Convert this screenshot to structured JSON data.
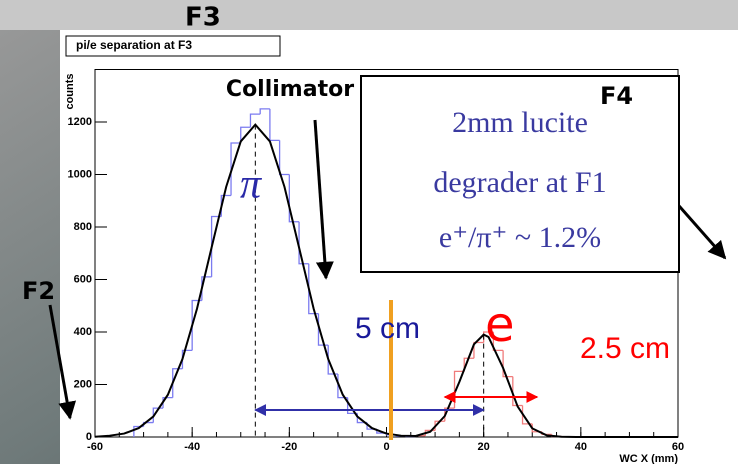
{
  "chart_data": {
    "type": "histogram",
    "title": "pi/e separation at F3",
    "xlabel": "WC X (mm)",
    "ylabel": "counts",
    "xlim": [
      -60,
      60
    ],
    "xticks": [
      -60,
      -40,
      -20,
      0,
      20,
      40,
      60
    ],
    "ylim": [
      0,
      1400
    ],
    "yticks": [
      0,
      200,
      400,
      600,
      800,
      1000,
      1200
    ],
    "series": [
      {
        "color": "#7b7bf0",
        "bins": [
          -52,
          -50,
          -48,
          -46,
          -44,
          -42,
          -40,
          -38,
          -36,
          -34,
          -32,
          -30,
          -28,
          -26,
          -24,
          -22,
          -20,
          -18,
          -16,
          -14,
          -12,
          -10,
          -8,
          -6,
          -4,
          -2,
          0,
          2,
          4,
          6
        ],
        "counts": [
          40,
          55,
          110,
          150,
          260,
          330,
          520,
          610,
          840,
          920,
          1120,
          1180,
          1230,
          1250,
          1130,
          1000,
          820,
          660,
          470,
          350,
          240,
          150,
          90,
          55,
          30,
          15,
          8,
          4,
          2
        ]
      },
      {
        "color": "#f07b7b",
        "bins": [
          6,
          8,
          10,
          12,
          14,
          16,
          18,
          20,
          22,
          24,
          26,
          28,
          30,
          32,
          34,
          36
        ],
        "counts": [
          5,
          25,
          60,
          110,
          250,
          300,
          360,
          400,
          330,
          230,
          120,
          50,
          20,
          10,
          2
        ]
      }
    ],
    "fit": {
      "color": "#000000",
      "x": [
        -60,
        -57,
        -54,
        -51,
        -48,
        -45,
        -42,
        -39,
        -36,
        -33,
        -30,
        -27,
        -24,
        -21,
        -18,
        -15,
        -12,
        -9,
        -6,
        -3,
        0,
        3,
        6,
        9,
        12,
        15,
        18,
        20,
        21,
        24,
        27,
        30,
        33,
        36,
        39,
        42,
        45,
        48,
        51,
        54,
        57,
        60
      ],
      "values": [
        1,
        5,
        13,
        34,
        78,
        161,
        297,
        489,
        722,
        953,
        1126,
        1190,
        1126,
        953,
        722,
        489,
        297,
        161,
        78,
        34,
        13,
        5,
        4,
        20,
        80,
        210,
        353,
        390,
        381,
        263,
        116,
        33,
        6,
        1,
        0,
        0,
        0,
        0,
        0,
        0,
        0,
        0
      ]
    },
    "annotations": [
      {
        "text": "F3",
        "color": "#000000"
      },
      {
        "text": "Collimator",
        "color": "#000000"
      },
      {
        "text": "F4",
        "color": "#000000"
      },
      {
        "text": "F2",
        "color": "#000000"
      },
      {
        "text": "π",
        "color": "#2a2aa8"
      },
      {
        "text": "5 cm",
        "color": "#1a1a9a"
      },
      {
        "text": "e",
        "color": "#ff0000"
      },
      {
        "text": "2.5 cm",
        "color": "#ff0000"
      }
    ],
    "note": {
      "color": "#3a3aa0",
      "lines": [
        "2mm lucite",
        "degrader at F1",
        "e⁺/π⁺ ~ 1.2%"
      ]
    }
  }
}
